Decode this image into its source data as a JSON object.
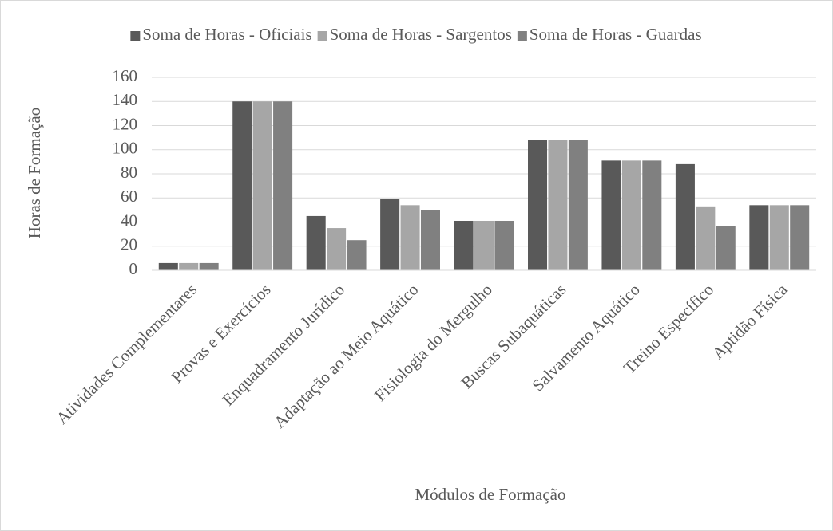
{
  "chart_data": {
    "type": "bar",
    "x_label": "Módulos de Formação",
    "y_label": "Horas de Formação",
    "categories": [
      "Atividades Complementares",
      "Provas e Exercícios",
      "Enquadramento Jurídico",
      "Adaptação ao Meio Aquático",
      "Fisiologia do Mergulho",
      "Buscas Subaquáticas",
      "Salvamento Aquático",
      "Treino Específico",
      "Aptidão Física"
    ],
    "series": [
      {
        "name": "Soma de Horas - Oficiais",
        "color": "#595959",
        "values": [
          6,
          140,
          45,
          59,
          41,
          108,
          91,
          88,
          54
        ]
      },
      {
        "name": "Soma de Horas - Sargentos",
        "color": "#a6a6a6",
        "values": [
          6,
          140,
          35,
          54,
          41,
          108,
          91,
          53,
          54
        ]
      },
      {
        "name": "Soma de Horas - Guardas",
        "color": "#808080",
        "values": [
          6,
          140,
          25,
          50,
          41,
          108,
          91,
          37,
          54
        ]
      }
    ],
    "ylim": [
      0,
      160
    ],
    "yticks": [
      0,
      20,
      40,
      60,
      80,
      100,
      120,
      140,
      160
    ],
    "grid": true,
    "legend": "top"
  }
}
